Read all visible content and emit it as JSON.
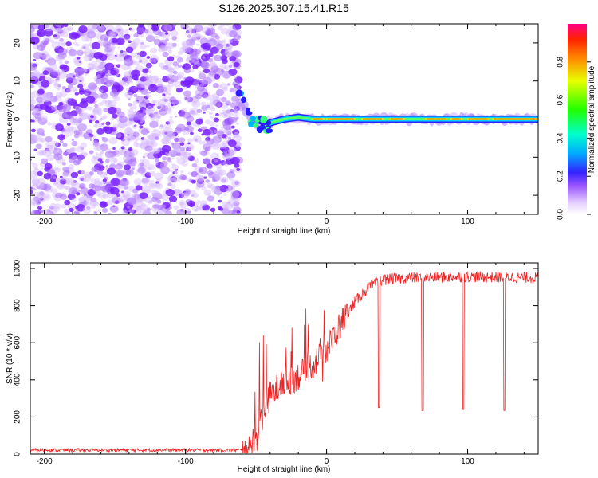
{
  "title": "S126.2025.307.15.41.R15",
  "colors": {
    "snr_line": "#ee2222",
    "noise": "#8a3cf0",
    "background": "#ffffff",
    "axis": "#000000"
  },
  "chart_data": [
    {
      "type": "heatmap",
      "name": "spectrogram",
      "xlabel": "Height of straight line (km)",
      "ylabel": "Frequency (Hz)",
      "xlim": [
        -210,
        150
      ],
      "ylim": [
        -25,
        25
      ],
      "xticks": [
        -200,
        -100,
        0,
        100
      ],
      "xtick_labels": [
        "-200",
        "-100",
        "0",
        "100"
      ],
      "yticks": [
        -20,
        -10,
        0,
        10,
        20
      ],
      "ytick_labels": [
        "-20",
        "-10",
        "0",
        "10",
        "20"
      ],
      "signal_track": {
        "x": [
          -65,
          -60,
          -55,
          -50,
          -45,
          -40,
          -30,
          -20,
          -10,
          0,
          20,
          50,
          100,
          150
        ],
        "y": [
          10,
          4,
          0,
          -1,
          -2,
          -1,
          0,
          0.5,
          0,
          0,
          0,
          0,
          0,
          0
        ]
      },
      "noise_region_x": [
        -210,
        -65
      ]
    },
    {
      "type": "colorbar",
      "name": "amplitude-colorbar",
      "label": "Normalized spectral amplitude",
      "range": [
        0,
        1
      ],
      "ticks": [
        0.0,
        0.2,
        0.4,
        0.6,
        0.8
      ],
      "tick_labels": [
        "0.0",
        "0.2",
        "0.4",
        "0.6",
        "0.8"
      ]
    },
    {
      "type": "line",
      "name": "snr",
      "xlabel": "Height of straight line (km)",
      "ylabel": "SNR (10 * v/v)",
      "xlim": [
        -210,
        150
      ],
      "ylim": [
        0,
        1030
      ],
      "xticks": [
        -200,
        -100,
        0,
        100
      ],
      "xtick_labels": [
        "-200",
        "-100",
        "0",
        "100"
      ],
      "yticks": [
        0,
        200,
        400,
        600,
        800,
        1000
      ],
      "ytick_labels": [
        "0",
        "200",
        "400",
        "600",
        "800",
        "1000"
      ],
      "envelope": {
        "x": [
          -210,
          -60,
          -50,
          -45,
          -40,
          -30,
          -20,
          -10,
          0,
          10,
          20,
          30,
          40,
          60,
          100,
          150
        ],
        "y": [
          22,
          22,
          80,
          200,
          320,
          380,
          420,
          480,
          560,
          700,
          820,
          900,
          940,
          950,
          955,
          950
        ]
      },
      "dips": [
        {
          "x": 37,
          "y": 250
        },
        {
          "x": 68,
          "y": 235
        },
        {
          "x": 97,
          "y": 240
        },
        {
          "x": 126,
          "y": 235
        }
      ]
    }
  ]
}
